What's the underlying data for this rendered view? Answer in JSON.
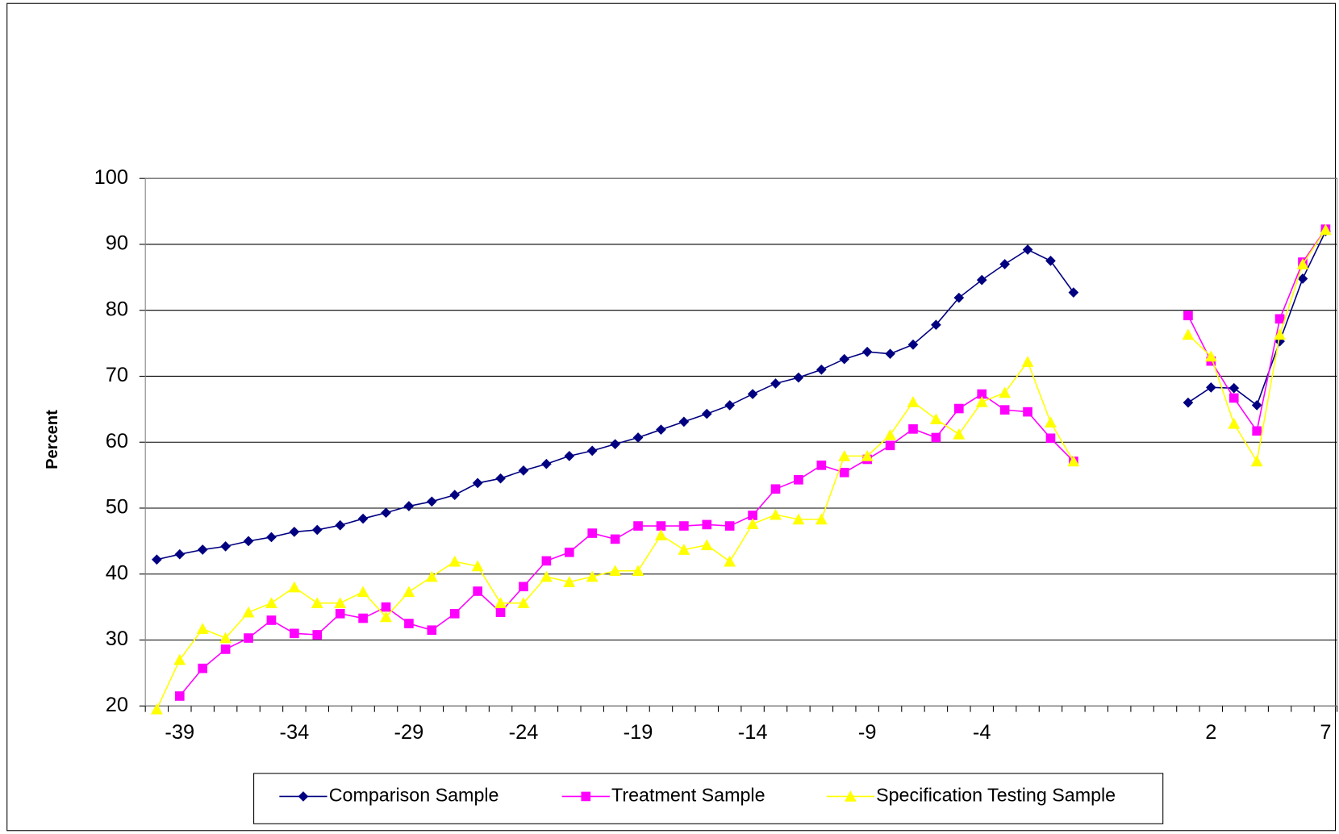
{
  "chart_data": {
    "type": "line",
    "y_label": "Percent",
    "categories": [
      null,
      -39,
      null,
      null,
      null,
      null,
      -34,
      null,
      null,
      null,
      null,
      -29,
      null,
      null,
      null,
      null,
      -24,
      null,
      null,
      null,
      null,
      -19,
      null,
      null,
      null,
      null,
      -14,
      null,
      null,
      null,
      null,
      -9,
      null,
      null,
      null,
      null,
      -4,
      null,
      null,
      null,
      null,
      null,
      null,
      null,
      null,
      null,
      2,
      null,
      null,
      null,
      null,
      7
    ],
    "series": [
      {
        "name": "Comparison Sample",
        "color": "#000080",
        "marker": "diamond",
        "values": [
          42.2,
          43,
          43.7,
          44.2,
          45,
          45.6,
          46.4,
          46.7,
          47.4,
          48.4,
          49.3,
          50.3,
          51,
          52,
          53.8,
          54.5,
          55.7,
          56.7,
          57.9,
          58.7,
          59.7,
          60.7,
          61.9,
          63.1,
          64.3,
          65.6,
          67.3,
          68.9,
          69.8,
          71,
          72.6,
          73.7,
          73.4,
          74.8,
          77.8,
          81.9,
          84.6,
          87,
          89.2,
          87.5,
          82.7,
          null,
          null,
          null,
          null,
          66,
          68.3,
          68.2,
          65.6,
          75.3,
          84.8,
          92
        ]
      },
      {
        "name": "Treatment Sample",
        "color": "#ff00ff",
        "marker": "square",
        "values": [
          null,
          21.5,
          25.7,
          28.6,
          30.3,
          33,
          31,
          30.8,
          34,
          33.3,
          35,
          32.5,
          31.5,
          34,
          37.4,
          34.2,
          38.1,
          42,
          43.3,
          46.2,
          45.3,
          47.3,
          47.3,
          47.3,
          47.5,
          47.3,
          48.9,
          52.9,
          54.3,
          56.5,
          55.4,
          57.4,
          59.5,
          62,
          60.7,
          65.1,
          67.3,
          64.9,
          64.6,
          60.6,
          57.1,
          null,
          null,
          null,
          null,
          79.2,
          72.3,
          66.7,
          61.7,
          78.7,
          87.3,
          92.3
        ]
      },
      {
        "name": "Specification Testing Sample",
        "color": "#ffff00",
        "marker": "triangle",
        "values": [
          19.5,
          27,
          31.7,
          30.3,
          34.2,
          35.6,
          38,
          35.6,
          35.6,
          37.3,
          33.5,
          37.3,
          39.6,
          41.9,
          41.2,
          35.6,
          35.6,
          39.6,
          38.8,
          39.6,
          40.5,
          40.5,
          45.9,
          43.7,
          44.4,
          41.9,
          47.6,
          49,
          48.3,
          48.3,
          57.9,
          57.9,
          61.1,
          66.1,
          63.5,
          61.2,
          66.1,
          67.5,
          72.2,
          63,
          57.1,
          null,
          null,
          null,
          null,
          76.3,
          73,
          62.8,
          57.1,
          76.3,
          87,
          92.2
        ]
      }
    ],
    "ylim": [
      20,
      100
    ],
    "yticks": [
      20,
      30,
      40,
      50,
      60,
      70,
      80,
      90,
      100
    ],
    "grid": true
  }
}
